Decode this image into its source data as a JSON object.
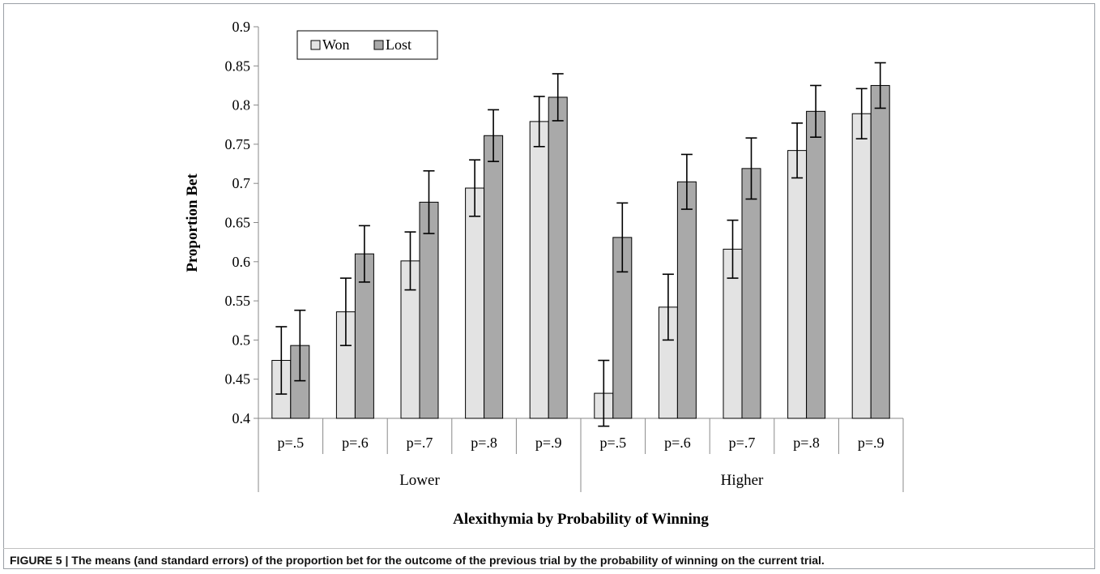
{
  "figure": {
    "caption_label": "FIGURE 5 |",
    "caption_text": "The means (and standard errors) of the proportion bet for the outcome of the previous trial by the probability of winning on the current trial."
  },
  "chart_data": {
    "type": "bar",
    "title": "",
    "xlabel": "Alexithymia by Probability of Winning",
    "ylabel": "Proportion Bet",
    "ylim": [
      0.4,
      0.9
    ],
    "yticks": [
      0.4,
      0.45,
      0.5,
      0.55,
      0.6,
      0.65,
      0.7,
      0.75,
      0.8,
      0.85,
      0.9
    ],
    "ytick_labels": [
      "0.4",
      "0.45",
      "0.5",
      "0.55",
      "0.6",
      "0.65",
      "0.7",
      "0.75",
      "0.8",
      "0.85",
      "0.9"
    ],
    "grid": false,
    "legend_position": "top-left",
    "groups": [
      {
        "label": "Lower",
        "categories": [
          "p=.5",
          "p=.6",
          "p=.7",
          "p=.8",
          "p=.9"
        ]
      },
      {
        "label": "Higher",
        "categories": [
          "p=.5",
          "p=.6",
          "p=.7",
          "p=.8",
          "p=.9"
        ]
      }
    ],
    "series": [
      {
        "name": "Won",
        "color": "#e3e3e3",
        "values": [
          0.474,
          0.536,
          0.601,
          0.694,
          0.779,
          0.432,
          0.542,
          0.616,
          0.742,
          0.789
        ],
        "errors": [
          0.043,
          0.043,
          0.037,
          0.036,
          0.032,
          0.042,
          0.042,
          0.037,
          0.035,
          0.032
        ]
      },
      {
        "name": "Lost",
        "color": "#a9a9a9",
        "values": [
          0.493,
          0.61,
          0.676,
          0.761,
          0.81,
          0.631,
          0.702,
          0.719,
          0.792,
          0.825
        ],
        "errors": [
          0.045,
          0.036,
          0.04,
          0.033,
          0.03,
          0.044,
          0.035,
          0.039,
          0.033,
          0.029
        ]
      }
    ]
  }
}
